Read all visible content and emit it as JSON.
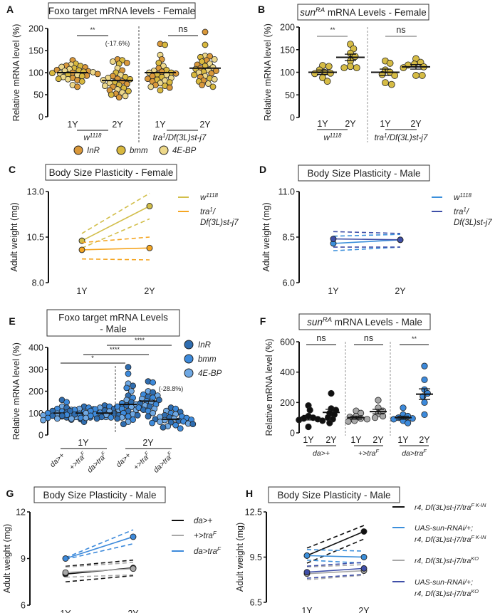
{
  "colors": {
    "InR_female": "#D9983A",
    "bmm_female": "#D8B83E",
    "4EBP_female": "#EDD88A",
    "sun_female": "#D6BC45",
    "w1118_female": "#D2BE4A",
    "tra_female": "#F5A623",
    "w1118_male": "#3B8FDB",
    "tra_male": "#3F4FA8",
    "InR_male": "#2F6DB0",
    "bmm_male": "#3D8ADB",
    "4EBP_male": "#6FA8E3",
    "da_plus": "#111111",
    "plus_tra": "#A8A8A8",
    "da_tra": "#3D8ADB",
    "H_black": "#111111",
    "H_lightblue": "#3B8FDB",
    "H_grey": "#A8A8A8",
    "H_navy": "#3F4FA8"
  },
  "chart_data": [
    {
      "panel": "A",
      "type": "scatter",
      "title": "Foxo target mRNA levels - Female",
      "ylabel": "Relative mRNA level (%)",
      "ylim": [
        0,
        200
      ],
      "yticks": [
        0,
        50,
        100,
        150,
        200
      ],
      "groups": [
        {
          "x_label": "1Y",
          "genotype": "w1118",
          "mean": 100,
          "values": [
            128,
            120,
            118,
            116,
            115,
            113,
            112,
            110,
            108,
            106,
            105,
            104,
            103,
            102,
            101,
            100,
            99,
            98,
            97,
            96,
            95,
            93,
            92,
            90,
            88,
            86,
            85,
            83,
            80,
            72,
            68
          ]
        },
        {
          "x_label": "2Y",
          "genotype": "w1118",
          "mean": 82,
          "values": [
            130,
            128,
            125,
            122,
            120,
            110,
            105,
            100,
            95,
            92,
            90,
            88,
            86,
            85,
            83,
            80,
            78,
            76,
            74,
            72,
            70,
            68,
            65,
            62,
            60,
            58,
            55,
            52,
            50,
            47,
            44
          ]
        },
        {
          "x_label": "1Y",
          "genotype": "tra1/Df(3L)st-j7",
          "mean": 100,
          "values": [
            165,
            163,
            140,
            130,
            122,
            115,
            110,
            106,
            104,
            102,
            100,
            100,
            98,
            96,
            95,
            92,
            90,
            88,
            86,
            84,
            82,
            80,
            78,
            76,
            72,
            70,
            68,
            66,
            60
          ]
        },
        {
          "x_label": "2Y",
          "genotype": "tra1/Df(3L)st-j7",
          "mean": 110,
          "values": [
            192,
            163,
            138,
            137,
            135,
            130,
            128,
            125,
            120,
            118,
            115,
            112,
            110,
            108,
            106,
            104,
            102,
            100,
            98,
            95,
            92,
            90,
            87,
            85,
            82,
            80,
            75,
            72,
            68
          ]
        }
      ],
      "genotype_labels": [
        "w1118",
        "tra1/Df(3L)st-j7"
      ],
      "significance": [
        {
          "label": "**",
          "annotation": "(-17.6%)"
        },
        {
          "label": "ns"
        }
      ],
      "legend": [
        "InR",
        "bmm",
        "4E-BP"
      ]
    },
    {
      "panel": "B",
      "type": "scatter",
      "title": "sunRA mRNA Levels - Female",
      "ylabel": "Relative mRNA level (%)",
      "ylim": [
        0,
        200
      ],
      "yticks": [
        0,
        50,
        100,
        150,
        200
      ],
      "groups": [
        {
          "x_label": "1Y",
          "genotype": "w1118",
          "mean": 100,
          "sem": 5,
          "values": [
            115,
            113,
            105,
            100,
            98,
            97,
            88,
            80
          ]
        },
        {
          "x_label": "2Y",
          "genotype": "w1118",
          "mean": 133,
          "sem": 7,
          "values": [
            162,
            152,
            142,
            135,
            125,
            113,
            110,
            110
          ]
        },
        {
          "x_label": "1Y",
          "genotype": "tra1/Df(3L)st-j7",
          "mean": 100,
          "sem": 7,
          "values": [
            125,
            120,
            105,
            100,
            95,
            93,
            77,
            73
          ]
        },
        {
          "x_label": "2Y",
          "genotype": "tra1/Df(3L)st-j7",
          "mean": 112,
          "sem": 5,
          "values": [
            130,
            122,
            118,
            116,
            112,
            110,
            93,
            93
          ]
        }
      ],
      "genotype_labels": [
        "w1118",
        "tra1/Df(3L)st-j7"
      ],
      "significance": [
        {
          "label": "**"
        },
        {
          "label": "ns"
        }
      ]
    },
    {
      "panel": "C",
      "type": "line",
      "title": "Body Size Plasticity - Female",
      "ylabel": "Adult weight (mg)",
      "ylim": [
        8.0,
        13.0
      ],
      "yticks": [
        "8.0",
        "10.5",
        "13.0"
      ],
      "x": [
        "1Y",
        "2Y"
      ],
      "series": [
        {
          "name": "w1118",
          "values": [
            10.3,
            12.2
          ],
          "ci_low": [
            9.9,
            11.5
          ],
          "ci_high": [
            10.7,
            12.9
          ]
        },
        {
          "name": "tra1/Df(3L)st-j7",
          "values": [
            9.8,
            9.9
          ],
          "ci_low": [
            9.3,
            9.25
          ],
          "ci_high": [
            10.2,
            10.5
          ]
        }
      ]
    },
    {
      "panel": "D",
      "type": "line",
      "title": "Body Size Plasticity - Male",
      "ylabel": "Adult weight (mg)",
      "ylim": [
        6.0,
        11.0
      ],
      "yticks": [
        "6.0",
        "8.5",
        "11.0"
      ],
      "x": [
        "1Y",
        "2Y"
      ],
      "series": [
        {
          "name": "w1118",
          "values": [
            8.15,
            8.35
          ],
          "ci_low": [
            7.75,
            7.95
          ],
          "ci_high": [
            8.55,
            8.65
          ]
        },
        {
          "name": "tra1/Df(3L)st-j7",
          "values": [
            8.4,
            8.35
          ],
          "ci_low": [
            7.95,
            7.95
          ],
          "ci_high": [
            8.8,
            8.7
          ]
        }
      ]
    },
    {
      "panel": "E",
      "type": "scatter",
      "title": "Foxo target mRNA Levels - Male",
      "ylabel": "Relative mRNA level (%)",
      "ylim": [
        0,
        400
      ],
      "yticks": [
        0,
        100,
        200,
        300,
        400
      ],
      "groups": [
        {
          "x_label": "da>+",
          "age": "1Y",
          "mean": 100,
          "values": [
            160,
            150,
            130,
            125,
            120,
            115,
            110,
            108,
            105,
            102,
            100,
            98,
            95,
            92,
            90,
            88,
            85,
            82,
            80,
            78,
            75,
            72,
            70,
            68
          ]
        },
        {
          "x_label": "+>traF",
          "age": "1Y",
          "mean": 100,
          "values": [
            130,
            125,
            120,
            118,
            115,
            112,
            110,
            105,
            102,
            100,
            98,
            96,
            94,
            92,
            90,
            88,
            85,
            82,
            80,
            78,
            75,
            60
          ]
        },
        {
          "x_label": "da>traF",
          "age": "1Y",
          "mean": 100,
          "values": [
            135,
            130,
            125,
            120,
            118,
            115,
            112,
            110,
            108,
            105,
            102,
            100,
            98,
            95,
            92,
            90,
            88,
            85,
            82,
            80,
            78,
            75
          ]
        },
        {
          "x_label": "da>+",
          "age": "2Y",
          "mean": 140,
          "values": [
            310,
            280,
            235,
            225,
            215,
            200,
            180,
            170,
            160,
            150,
            145,
            140,
            135,
            130,
            128,
            125,
            120,
            115,
            110,
            100,
            95,
            90,
            85,
            80,
            75,
            70,
            60,
            50
          ]
        },
        {
          "x_label": "+>traF",
          "age": "2Y",
          "mean": 155,
          "values": [
            245,
            240,
            200,
            195,
            185,
            180,
            175,
            170,
            165,
            160,
            155,
            150,
            145,
            140,
            135,
            130,
            125,
            120,
            115,
            110,
            100,
            85
          ]
        },
        {
          "x_label": "da>traF",
          "age": "2Y",
          "mean": 72,
          "values": [
            125,
            120,
            110,
            105,
            100,
            95,
            90,
            85,
            82,
            80,
            78,
            75,
            72,
            70,
            68,
            65,
            62,
            60,
            58,
            55,
            52,
            50,
            45,
            40,
            35,
            30
          ]
        }
      ],
      "age_labels": [
        "1Y",
        "2Y"
      ],
      "significance": [
        {
          "label": "*",
          "from": "da>+ 1Y",
          "to": "da>+ 2Y"
        },
        {
          "label": "****",
          "from": "+>traF 1Y",
          "to": "+>traF 2Y"
        },
        {
          "label": "****",
          "from": "da>+ 2Y",
          "to": "da>traF 2Y"
        }
      ],
      "annotation": "(-28.8%)",
      "legend": [
        "InR",
        "bmm",
        "4E-BP"
      ]
    },
    {
      "panel": "F",
      "type": "scatter",
      "title": "sunRA mRNA Levels - Male",
      "ylabel": "Relative mRNA level (%)",
      "ylim": [
        0,
        600
      ],
      "yticks": [
        0,
        200,
        400,
        600
      ],
      "groups": [
        {
          "x_label": "1Y",
          "genotype": "da>+",
          "mean": 100,
          "sem": 15,
          "values": [
            180,
            150,
            110,
            100,
            95,
            90,
            85,
            80,
            40
          ]
        },
        {
          "x_label": "2Y",
          "genotype": "da>+",
          "mean": 135,
          "sem": 20,
          "values": [
            260,
            160,
            150,
            130,
            120,
            100,
            90,
            65
          ]
        },
        {
          "x_label": "1Y",
          "genotype": "+>traF",
          "mean": 100,
          "sem": 10,
          "values": [
            145,
            130,
            110,
            105,
            95,
            90,
            80,
            75
          ]
        },
        {
          "x_label": "2Y",
          "genotype": "+>traF",
          "mean": 140,
          "sem": 15,
          "values": [
            215,
            165,
            145,
            125,
            110,
            100
          ]
        },
        {
          "x_label": "1Y",
          "genotype": "da>traF",
          "mean": 100,
          "sem": 10,
          "values": [
            165,
            120,
            110,
            100,
            95,
            90,
            80,
            65
          ]
        },
        {
          "x_label": "2Y",
          "genotype": "da>traF",
          "mean": 255,
          "sem": 35,
          "values": [
            440,
            350,
            285,
            260,
            240,
            200,
            120
          ]
        }
      ],
      "genotype_labels": [
        "da>+",
        "+>traF",
        "da>traF"
      ],
      "significance": [
        {
          "label": "ns"
        },
        {
          "label": "ns"
        },
        {
          "label": "**"
        }
      ]
    },
    {
      "panel": "G",
      "type": "line",
      "title": "Body Size Plasticity - Male",
      "ylabel": "Adult weight (mg)",
      "ylim": [
        6,
        12
      ],
      "yticks": [
        "6",
        "9",
        "12"
      ],
      "x": [
        "1Y",
        "2Y"
      ],
      "series": [
        {
          "name": "da>+",
          "values": [
            8.0,
            8.4
          ],
          "ci_low": [
            7.5,
            7.9
          ],
          "ci_high": [
            8.5,
            8.9
          ]
        },
        {
          "name": "+>traF",
          "values": [
            8.1,
            8.35
          ],
          "ci_low": [
            7.8,
            7.95
          ],
          "ci_high": [
            8.45,
            8.75
          ]
        },
        {
          "name": "da>traF",
          "values": [
            9.0,
            10.4
          ],
          "ci_low": [
            8.95,
            9.95
          ],
          "ci_high": [
            9.05,
            10.85
          ]
        }
      ]
    },
    {
      "panel": "H",
      "type": "line",
      "title": "Body Size Plasticity - Male",
      "ylabel": "Adult weight (mg)",
      "ylim": [
        6.5,
        12.5
      ],
      "yticks": [
        "6.5",
        "9.5",
        "12.5"
      ],
      "x": [
        "1Y",
        "2Y"
      ],
      "series": [
        {
          "name": "r4, Df(3L)st-j7/traF K-IN",
          "values": [
            9.6,
            11.2
          ],
          "ci_low": [
            9.1,
            10.7
          ],
          "ci_high": [
            10.1,
            11.6
          ]
        },
        {
          "name": "UAS-sun-RNAi/+; r4, Df(3L)st-j7/traF K-IN",
          "values": [
            9.6,
            9.5
          ],
          "ci_low": [
            9.3,
            9.1
          ],
          "ci_high": [
            10.0,
            9.9
          ]
        },
        {
          "name": "r4, Df(3L)st-j7/traKO",
          "values": [
            8.4,
            8.6
          ],
          "ci_low": [
            8.0,
            8.3
          ],
          "ci_high": [
            8.85,
            9.0
          ]
        },
        {
          "name": "UAS-sun-RNAi/+; r4, Df(3L)st-j7/traKO",
          "values": [
            8.5,
            8.75
          ],
          "ci_low": [
            8.1,
            8.35
          ],
          "ci_high": [
            8.9,
            9.15
          ]
        }
      ]
    }
  ]
}
